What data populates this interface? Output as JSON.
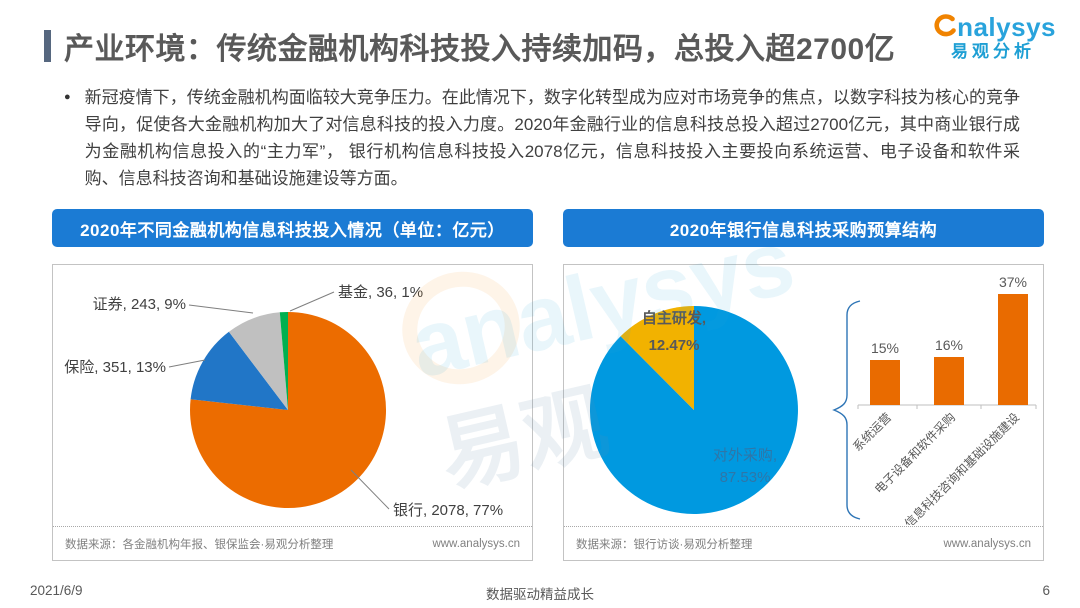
{
  "header": {
    "title": "产业环境：传统金融机构科技投入持续加码，总投入超2700亿",
    "logo": {
      "brand": "nalysys",
      "brand_cn": "易观分析"
    }
  },
  "summary": {
    "text": "新冠疫情下，传统金融机构面临较大竞争压力。在此情况下，数字化转型成为应对市场竞争的焦点，以数字科技为核心的竞争导向，促使各大金融机构加大了对信息科技的投入力度。2020年金融行业的信息科技总投入超过2700亿元，其中商业银行成为金融机构信息投入的“主力军”， 银行机构信息科技投入2078亿元，信息科技投入主要投向系统运营、电子设备和软件采购、信息科技咨询和基础设施建设等方面。"
  },
  "panels": {
    "left": {
      "source": "数据来源：各金融机构年报、银保监会·易观分析整理",
      "site": "www.analysys.cn"
    },
    "right": {
      "source": "数据来源：银行访谈·易观分析整理",
      "site": "www.analysys.cn"
    }
  },
  "footer": {
    "date": "2021/6/9",
    "tagline": "数据驱动精益成长",
    "page": "6"
  },
  "watermark": {
    "text1": "analysys",
    "text2": "易观"
  },
  "chart_data": [
    {
      "type": "pie",
      "title": "2020年不同金融机构信息科技投入情况（单位：亿元）",
      "unit": "亿元",
      "legend_position": "callout-labels",
      "slices": [
        {
          "label": "银行",
          "value": 2078,
          "percent": "77%",
          "color": "#EC6C00"
        },
        {
          "label": "保险",
          "value": 351,
          "percent": "13%",
          "color": "#2176C7"
        },
        {
          "label": "证券",
          "value": 243,
          "percent": "9%",
          "color": "#C0C0C0"
        },
        {
          "label": "基金",
          "value": 36,
          "percent": "1%",
          "color": "#00B050"
        }
      ]
    },
    {
      "type": "pie",
      "title": "2020年银行信息科技采购预算结构",
      "legend_position": "inside-labels",
      "slices": [
        {
          "label": "对外采购",
          "value": 87.53,
          "percent": "87.53%",
          "color": "#0099E0"
        },
        {
          "label": "自主研发",
          "value": 12.47,
          "percent": "12.47%",
          "color": "#F2B200"
        }
      ]
    },
    {
      "type": "bar",
      "categories": [
        "系统运营",
        "电子设备和软件采购",
        "信息科技咨询和基础设施建设"
      ],
      "values": [
        15,
        16,
        37
      ],
      "value_labels": [
        "15%",
        "16%",
        "37%"
      ],
      "unit": "%",
      "bar_color": "#E96B00",
      "ylim": [
        0,
        40
      ],
      "grid": false
    }
  ]
}
